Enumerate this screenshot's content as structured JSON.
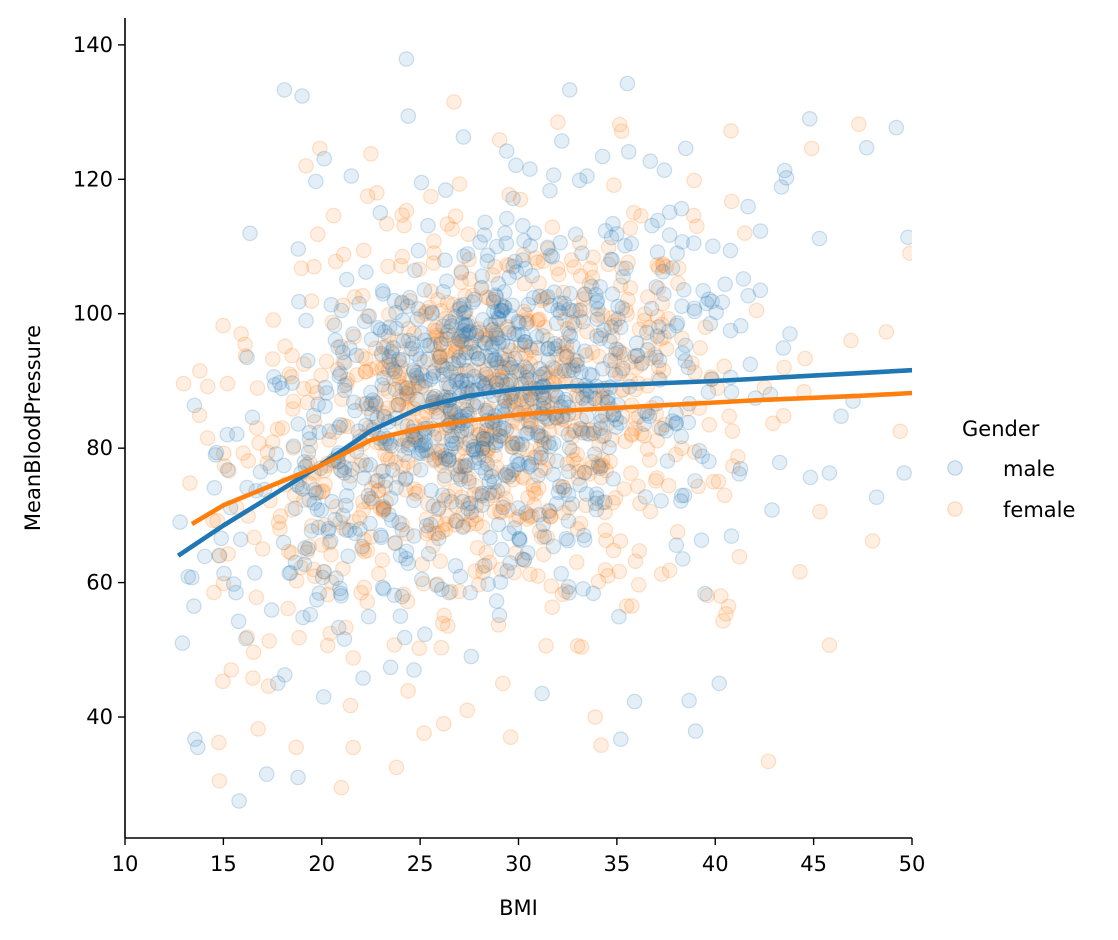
{
  "chart_data": {
    "type": "scatter",
    "title": "",
    "xlabel": "BMI",
    "ylabel": "MeanBloodPressure",
    "xlim": [
      10,
      50
    ],
    "ylim": [
      22,
      144
    ],
    "xticks": [
      10,
      15,
      20,
      25,
      30,
      35,
      40,
      45,
      50
    ],
    "yticks": [
      40,
      60,
      80,
      100,
      120,
      140
    ],
    "grid": false,
    "legend": {
      "title": "Gender",
      "position": "right",
      "entries": [
        "male",
        "female"
      ]
    },
    "series": [
      {
        "name": "male",
        "color": "#1f77b4",
        "point_alpha": 0.12,
        "points_sample": [
          [
            12.8,
            69
          ],
          [
            13.5,
            56.5
          ],
          [
            13.7,
            35.5
          ],
          [
            14.6,
            79
          ],
          [
            15.2,
            82
          ],
          [
            15.8,
            27.5
          ],
          [
            16.2,
            93.5
          ],
          [
            17.2,
            31.5
          ],
          [
            18.1,
            133.3
          ],
          [
            18.8,
            31
          ],
          [
            19.0,
            132.4
          ],
          [
            19.3,
            65
          ],
          [
            20.1,
            43
          ],
          [
            21.5,
            120.5
          ],
          [
            21.9,
            101.5
          ],
          [
            22.1,
            45.8
          ],
          [
            23.5,
            47.4
          ],
          [
            24.0,
            55
          ],
          [
            24.3,
            137.9
          ],
          [
            24.4,
            129.4
          ],
          [
            24.8,
            94
          ],
          [
            25.4,
            113.1
          ],
          [
            25.6,
            100
          ],
          [
            26.1,
            59
          ],
          [
            26.3,
            118.4
          ],
          [
            26.8,
            62.5
          ],
          [
            27.2,
            126.3
          ],
          [
            27.6,
            49
          ],
          [
            28.0,
            90
          ],
          [
            28.9,
            110
          ],
          [
            29.4,
            124.2
          ],
          [
            29.9,
            106.2
          ],
          [
            30.5,
            84
          ],
          [
            30.8,
            112
          ],
          [
            31.2,
            43.5
          ],
          [
            31.6,
            118.3
          ],
          [
            32.2,
            125.7
          ],
          [
            32.6,
            133.3
          ],
          [
            32.9,
            111.8
          ],
          [
            33.8,
            58.4
          ],
          [
            34.2,
            84
          ],
          [
            34.8,
            113.4
          ],
          [
            35.2,
            36.7
          ],
          [
            35.6,
            124.1
          ],
          [
            35.9,
            42.3
          ],
          [
            36.7,
            122.7
          ],
          [
            37.0,
            104
          ],
          [
            38.5,
            124.6
          ],
          [
            39.0,
            37.9
          ],
          [
            39.3,
            66.3
          ],
          [
            40.2,
            45
          ],
          [
            40.5,
            104.4
          ],
          [
            41.3,
            98.2
          ],
          [
            42.3,
            112.3
          ],
          [
            42.8,
            88
          ],
          [
            43.8,
            97
          ],
          [
            44.8,
            129
          ],
          [
            45.3,
            111.2
          ],
          [
            45.8,
            76.3
          ],
          [
            47.0,
            87
          ],
          [
            47.7,
            124.7
          ],
          [
            48.2,
            72.7
          ],
          [
            49.2,
            127.7
          ],
          [
            49.6,
            76.3
          ]
        ],
        "trend_line": [
          [
            12.8,
            64.2
          ],
          [
            15,
            68.5
          ],
          [
            17.5,
            73
          ],
          [
            20,
            77.6
          ],
          [
            22.5,
            82.6
          ],
          [
            25,
            86
          ],
          [
            27.5,
            87.8
          ],
          [
            30,
            88.8
          ],
          [
            32.5,
            89.2
          ],
          [
            35,
            89.4
          ],
          [
            37.5,
            89.7
          ],
          [
            40,
            90
          ],
          [
            42.5,
            90.4
          ],
          [
            45,
            90.8
          ],
          [
            47.5,
            91.2
          ],
          [
            50,
            91.6
          ]
        ]
      },
      {
        "name": "female",
        "color": "#ff7f0e",
        "point_alpha": 0.12,
        "points_sample": [
          [
            13.3,
            74.8
          ],
          [
            13.8,
            91.5
          ],
          [
            14.2,
            81.5
          ],
          [
            14.8,
            30.5
          ],
          [
            15.4,
            47
          ],
          [
            15.9,
            97
          ],
          [
            16.5,
            45.8
          ],
          [
            17.0,
            65
          ],
          [
            18.0,
            83
          ],
          [
            18.7,
            35.5
          ],
          [
            19.2,
            122
          ],
          [
            19.6,
            107
          ],
          [
            19.9,
            124.6
          ],
          [
            20.6,
            114.6
          ],
          [
            21.0,
            29.5
          ],
          [
            21.6,
            48.8
          ],
          [
            22.0,
            58.5
          ],
          [
            22.5,
            123.8
          ],
          [
            22.8,
            118
          ],
          [
            23.3,
            113.4
          ],
          [
            23.8,
            32.5
          ],
          [
            24.1,
            108.5
          ],
          [
            24.7,
            89
          ],
          [
            25.2,
            37.6
          ],
          [
            25.7,
            110.8
          ],
          [
            26.2,
            39
          ],
          [
            26.8,
            114.5
          ],
          [
            27.0,
            119.3
          ],
          [
            27.4,
            41
          ],
          [
            28.2,
            61.5
          ],
          [
            28.8,
            107
          ],
          [
            29.2,
            45
          ],
          [
            29.6,
            37
          ],
          [
            30.1,
            117
          ],
          [
            30.6,
            95
          ],
          [
            31.4,
            50.6
          ],
          [
            32.0,
            128.5
          ],
          [
            32.7,
            108
          ],
          [
            33.2,
            50.4
          ],
          [
            33.9,
            40
          ],
          [
            34.2,
            35.8
          ],
          [
            34.9,
            93
          ],
          [
            35.5,
            56.5
          ],
          [
            36.4,
            99
          ],
          [
            37.5,
            107
          ],
          [
            38.3,
            80
          ],
          [
            38.9,
            114.6
          ],
          [
            39.5,
            98
          ],
          [
            40.4,
            54.3
          ],
          [
            40.8,
            127.2
          ],
          [
            41.5,
            112
          ],
          [
            42.1,
            100.5
          ],
          [
            42.7,
            33.4
          ],
          [
            43.5,
            92
          ],
          [
            44.3,
            61.6
          ],
          [
            44.9,
            124.6
          ],
          [
            45.8,
            50.7
          ],
          [
            46.9,
            96
          ],
          [
            47.3,
            128.2
          ],
          [
            48.0,
            66.2
          ],
          [
            48.7,
            97.3
          ],
          [
            49.4,
            82.5
          ],
          [
            49.9,
            109
          ]
        ],
        "trend_line": [
          [
            13.5,
            68.9
          ],
          [
            15,
            71.5
          ],
          [
            17.5,
            74.5
          ],
          [
            20,
            77.5
          ],
          [
            22.5,
            81.2
          ],
          [
            25,
            83
          ],
          [
            27.5,
            84.1
          ],
          [
            30,
            85
          ],
          [
            32.5,
            85.6
          ],
          [
            35,
            86
          ],
          [
            37.5,
            86.4
          ],
          [
            40,
            86.8
          ],
          [
            42.5,
            87.2
          ],
          [
            45,
            87.5
          ],
          [
            47.5,
            87.8
          ],
          [
            50,
            88.2
          ]
        ]
      }
    ]
  }
}
